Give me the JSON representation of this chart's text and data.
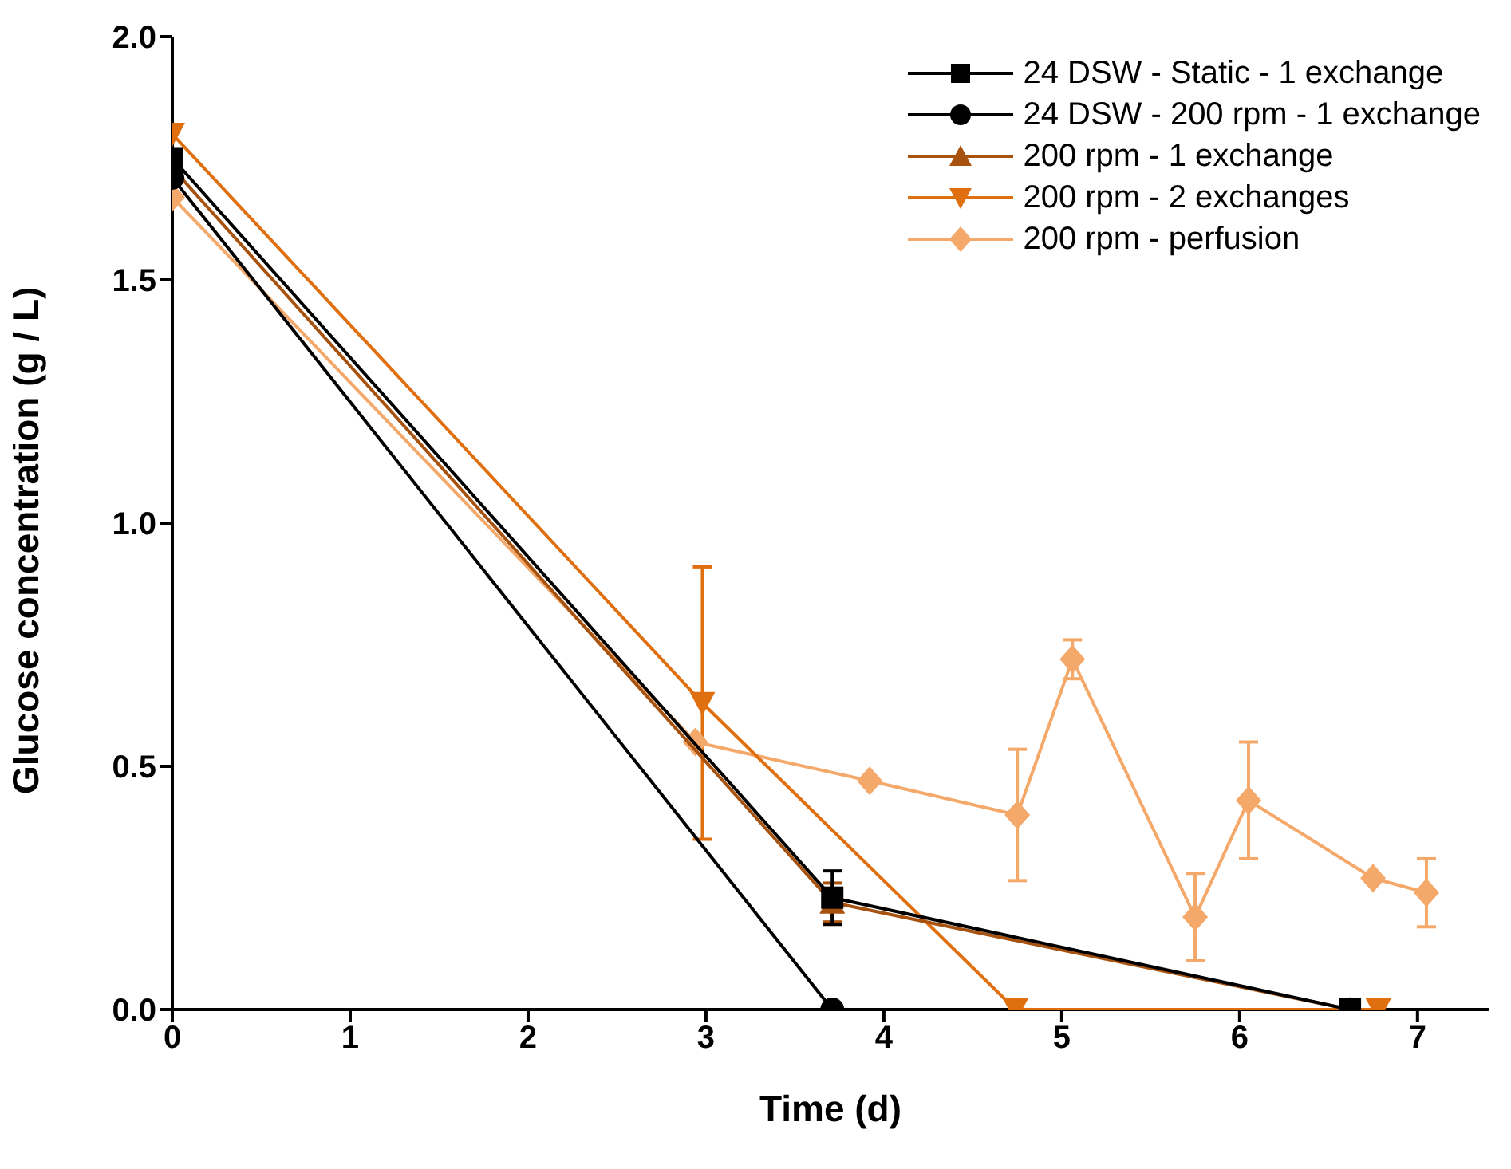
{
  "chart_data": {
    "type": "line",
    "xlabel": "Time (d)",
    "ylabel": "Glucose concentration (g / L)",
    "xlim": [
      0,
      7.4
    ],
    "xticks": [
      0,
      1,
      2,
      3,
      4,
      5,
      6,
      7
    ],
    "ylim": [
      0,
      2
    ],
    "yticks": [
      {
        "value": 0,
        "label": "0.0"
      },
      {
        "value": 0.5,
        "label": "0.5"
      },
      {
        "value": 1,
        "label": "1.0"
      },
      {
        "value": 1.5,
        "label": "1.5"
      },
      {
        "value": 2,
        "label": "2.0"
      }
    ],
    "grid": false,
    "legend": "top right",
    "line_style": "solid",
    "series": [
      {
        "name": "24 DSW - Static - 1 exchange",
        "color": "#000000",
        "marker": "square",
        "x": [
          0,
          3.71,
          6.62
        ],
        "values": [
          1.75,
          0.23,
          0
        ],
        "errors": [
          null,
          0.055,
          null
        ]
      },
      {
        "name": "24 DSW - 200 rpm - 1 exchange",
        "color": "#000000",
        "marker": "circle",
        "x": [
          0,
          3.71
        ],
        "values": [
          1.71,
          0
        ],
        "errors": [
          null,
          null
        ]
      },
      {
        "name": "200 rpm - 1 exchange",
        "color": "#a8520f",
        "marker": "triangle",
        "x": [
          0,
          3.71,
          6.62
        ],
        "values": [
          1.73,
          0.22,
          0
        ],
        "errors": [
          null,
          0.04,
          null
        ]
      },
      {
        "name": "200 rpm - 2 exchanges",
        "color": "#e0700f",
        "marker": "triangle-down",
        "x": [
          0,
          2.98,
          4.74,
          6.78
        ],
        "values": [
          1.8,
          0.63,
          0,
          0
        ],
        "errors": [
          null,
          0.28,
          null,
          null
        ]
      },
      {
        "name": "200 rpm - perfusion",
        "color": "#f4a86a",
        "marker": "diamond",
        "x": [
          0,
          2.94,
          3.92,
          4.75,
          5.06,
          5.75,
          6.05,
          6.75,
          7.05
        ],
        "values": [
          1.67,
          0.55,
          0.47,
          0.4,
          0.72,
          0.19,
          0.43,
          0.27,
          0.24
        ],
        "errors": [
          null,
          null,
          null,
          0.135,
          0.04,
          0.09,
          0.12,
          null,
          0.07
        ]
      }
    ]
  }
}
